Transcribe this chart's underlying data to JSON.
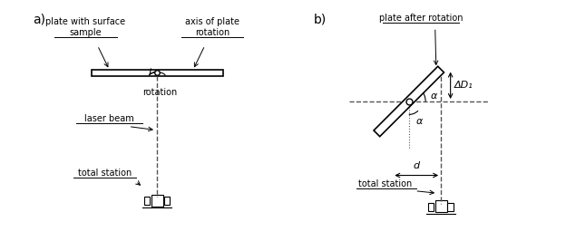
{
  "bg_color": "#ffffff",
  "line_color": "#000000",
  "dashed_color": "#555555",
  "panel_a_label": "a)",
  "panel_b_label": "b)",
  "text_plate_surface": "plate with surface\nsample",
  "text_axis_rotation": "axis of plate\nrotation",
  "text_rotation": "rotation",
  "text_laser": "laser beam",
  "text_total_station_a": "total station",
  "text_plate_after": "plate after rotation",
  "text_total_station_b": "total station",
  "text_alpha_upper": "α",
  "text_alpha_lower": "α",
  "text_delta_d": "ΔD₁",
  "text_d": "d"
}
